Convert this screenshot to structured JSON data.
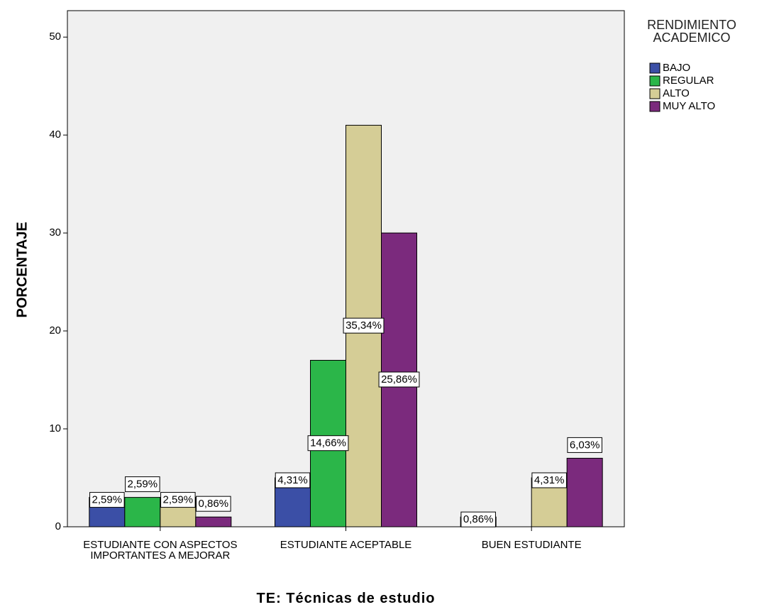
{
  "chart_data": {
    "type": "bar",
    "x_label": "TE: Técnicas de estudio",
    "y_label": "PORCENTAJE",
    "legend_title": "RENDIMIENTO ACADEMICO",
    "categories": [
      "ESTUDIANTE CON ASPECTOS IMPORTANTES A MEJORAR",
      "ESTUDIANTE ACEPTABLE",
      "BUEN ESTUDIANTE"
    ],
    "series": [
      {
        "name": "BAJO",
        "color": "#3b4fa6",
        "values": [
          3,
          5,
          1
        ],
        "value_labels": [
          "2,59%",
          "4,31%",
          "0,86%"
        ]
      },
      {
        "name": "REGULAR",
        "color": "#2bb649",
        "values": [
          3,
          17,
          null
        ],
        "value_labels": [
          "2,59%",
          "14,66%",
          null
        ]
      },
      {
        "name": "ALTO",
        "color": "#d5cd96",
        "values": [
          3,
          41,
          5
        ],
        "value_labels": [
          "2,59%",
          "35,34%",
          "4,31%"
        ]
      },
      {
        "name": "MUY ALTO",
        "color": "#7b2a7d",
        "values": [
          1,
          30,
          7
        ],
        "value_labels": [
          "0,86%",
          "25,86%",
          "6,03%"
        ]
      }
    ],
    "ylim": [
      0,
      52.7
    ],
    "yticks": [
      0,
      10,
      20,
      30,
      40,
      50
    ],
    "grid": false,
    "legend": "right"
  }
}
